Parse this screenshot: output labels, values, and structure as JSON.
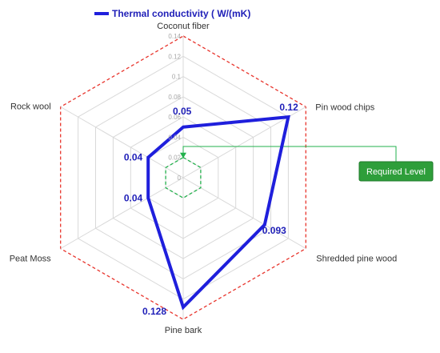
{
  "chart_data": {
    "type": "radar",
    "title": "",
    "categories": [
      "Coconut fiber",
      "Pin wood chips",
      "Shredded pine wood",
      "Pine bark",
      "Peat Moss",
      "Rock wool"
    ],
    "series": [
      {
        "name": "Thermal conductivity ( W/(mK)",
        "values": [
          0.05,
          0.12,
          0.093,
          0.128,
          0.04,
          0.04
        ],
        "data_labels": [
          "0.05",
          "0.12",
          "0.093",
          "0.128",
          "0.04",
          "0.04"
        ],
        "color": "#1f1fdc"
      }
    ],
    "axis": {
      "min": 0,
      "max": 0.14,
      "step": 0.02,
      "ticks": [
        "0",
        "0.02",
        "0.04",
        "0.06",
        "0.08",
        "0.1",
        "0.12",
        "0.14"
      ]
    },
    "grid": true,
    "outer_ring_color": "#e8342c",
    "legend": {
      "position": "top",
      "label": "Thermal conductivity ( W/(mK)"
    },
    "annotation": {
      "label": "Required Level",
      "value": 0.02,
      "ring_color": "#22b14c",
      "box_color": "#2e9e3a"
    }
  }
}
